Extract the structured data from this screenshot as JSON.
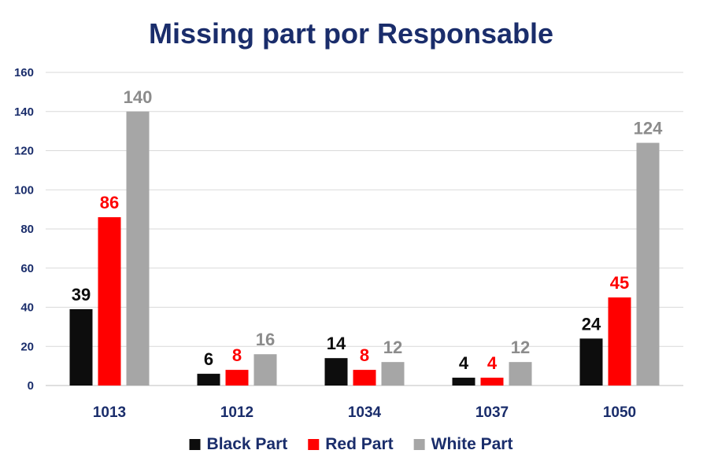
{
  "chart_data": {
    "type": "bar",
    "title": "Missing part por Responsable",
    "categories": [
      "1013",
      "1012",
      "1034",
      "1037",
      "1050"
    ],
    "series": [
      {
        "name": "Black Part",
        "color": "#0d0d0d",
        "label_color": "#0d0d0d",
        "values": [
          39,
          6,
          14,
          4,
          24
        ]
      },
      {
        "name": "Red Part",
        "color": "#ff0000",
        "label_color": "#ff0000",
        "values": [
          86,
          8,
          8,
          4,
          45
        ]
      },
      {
        "name": "White Part",
        "color": "#a6a6a6",
        "label_color": "#8c8c8c",
        "values": [
          140,
          16,
          12,
          12,
          124
        ]
      }
    ],
    "ylim": [
      0,
      160
    ],
    "yticks": [
      0,
      20,
      40,
      60,
      80,
      100,
      120,
      140,
      160
    ],
    "grid": true,
    "legend": "bottom-center",
    "title_color": "#1a2d6b",
    "axis_text_color": "#1a2d6b"
  }
}
